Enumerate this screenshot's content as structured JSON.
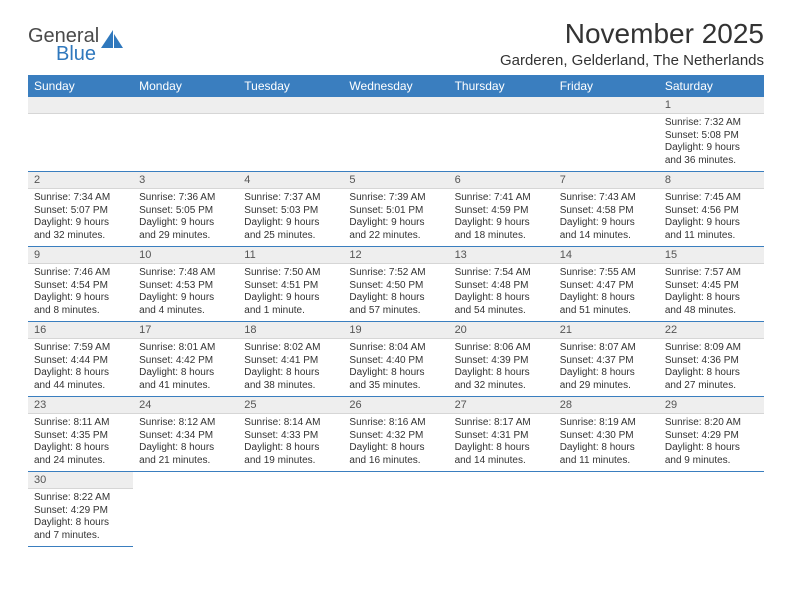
{
  "brand": {
    "word1": "General",
    "word2": "Blue"
  },
  "title": "November 2025",
  "location": "Garderen, Gelderland, The Netherlands",
  "colors": {
    "header_bg": "#3a7ebf",
    "header_text": "#ffffff",
    "row_divider": "#3a7ebf",
    "daynum_bg": "#eeeeee",
    "brand_blue": "#2f78bd"
  },
  "weekdays": [
    "Sunday",
    "Monday",
    "Tuesday",
    "Wednesday",
    "Thursday",
    "Friday",
    "Saturday"
  ],
  "weeks": [
    [
      null,
      null,
      null,
      null,
      null,
      null,
      {
        "n": "1",
        "sunrise": "Sunrise: 7:32 AM",
        "sunset": "Sunset: 5:08 PM",
        "daylight": "Daylight: 9 hours and 36 minutes."
      }
    ],
    [
      {
        "n": "2",
        "sunrise": "Sunrise: 7:34 AM",
        "sunset": "Sunset: 5:07 PM",
        "daylight": "Daylight: 9 hours and 32 minutes."
      },
      {
        "n": "3",
        "sunrise": "Sunrise: 7:36 AM",
        "sunset": "Sunset: 5:05 PM",
        "daylight": "Daylight: 9 hours and 29 minutes."
      },
      {
        "n": "4",
        "sunrise": "Sunrise: 7:37 AM",
        "sunset": "Sunset: 5:03 PM",
        "daylight": "Daylight: 9 hours and 25 minutes."
      },
      {
        "n": "5",
        "sunrise": "Sunrise: 7:39 AM",
        "sunset": "Sunset: 5:01 PM",
        "daylight": "Daylight: 9 hours and 22 minutes."
      },
      {
        "n": "6",
        "sunrise": "Sunrise: 7:41 AM",
        "sunset": "Sunset: 4:59 PM",
        "daylight": "Daylight: 9 hours and 18 minutes."
      },
      {
        "n": "7",
        "sunrise": "Sunrise: 7:43 AM",
        "sunset": "Sunset: 4:58 PM",
        "daylight": "Daylight: 9 hours and 14 minutes."
      },
      {
        "n": "8",
        "sunrise": "Sunrise: 7:45 AM",
        "sunset": "Sunset: 4:56 PM",
        "daylight": "Daylight: 9 hours and 11 minutes."
      }
    ],
    [
      {
        "n": "9",
        "sunrise": "Sunrise: 7:46 AM",
        "sunset": "Sunset: 4:54 PM",
        "daylight": "Daylight: 9 hours and 8 minutes."
      },
      {
        "n": "10",
        "sunrise": "Sunrise: 7:48 AM",
        "sunset": "Sunset: 4:53 PM",
        "daylight": "Daylight: 9 hours and 4 minutes."
      },
      {
        "n": "11",
        "sunrise": "Sunrise: 7:50 AM",
        "sunset": "Sunset: 4:51 PM",
        "daylight": "Daylight: 9 hours and 1 minute."
      },
      {
        "n": "12",
        "sunrise": "Sunrise: 7:52 AM",
        "sunset": "Sunset: 4:50 PM",
        "daylight": "Daylight: 8 hours and 57 minutes."
      },
      {
        "n": "13",
        "sunrise": "Sunrise: 7:54 AM",
        "sunset": "Sunset: 4:48 PM",
        "daylight": "Daylight: 8 hours and 54 minutes."
      },
      {
        "n": "14",
        "sunrise": "Sunrise: 7:55 AM",
        "sunset": "Sunset: 4:47 PM",
        "daylight": "Daylight: 8 hours and 51 minutes."
      },
      {
        "n": "15",
        "sunrise": "Sunrise: 7:57 AM",
        "sunset": "Sunset: 4:45 PM",
        "daylight": "Daylight: 8 hours and 48 minutes."
      }
    ],
    [
      {
        "n": "16",
        "sunrise": "Sunrise: 7:59 AM",
        "sunset": "Sunset: 4:44 PM",
        "daylight": "Daylight: 8 hours and 44 minutes."
      },
      {
        "n": "17",
        "sunrise": "Sunrise: 8:01 AM",
        "sunset": "Sunset: 4:42 PM",
        "daylight": "Daylight: 8 hours and 41 minutes."
      },
      {
        "n": "18",
        "sunrise": "Sunrise: 8:02 AM",
        "sunset": "Sunset: 4:41 PM",
        "daylight": "Daylight: 8 hours and 38 minutes."
      },
      {
        "n": "19",
        "sunrise": "Sunrise: 8:04 AM",
        "sunset": "Sunset: 4:40 PM",
        "daylight": "Daylight: 8 hours and 35 minutes."
      },
      {
        "n": "20",
        "sunrise": "Sunrise: 8:06 AM",
        "sunset": "Sunset: 4:39 PM",
        "daylight": "Daylight: 8 hours and 32 minutes."
      },
      {
        "n": "21",
        "sunrise": "Sunrise: 8:07 AM",
        "sunset": "Sunset: 4:37 PM",
        "daylight": "Daylight: 8 hours and 29 minutes."
      },
      {
        "n": "22",
        "sunrise": "Sunrise: 8:09 AM",
        "sunset": "Sunset: 4:36 PM",
        "daylight": "Daylight: 8 hours and 27 minutes."
      }
    ],
    [
      {
        "n": "23",
        "sunrise": "Sunrise: 8:11 AM",
        "sunset": "Sunset: 4:35 PM",
        "daylight": "Daylight: 8 hours and 24 minutes."
      },
      {
        "n": "24",
        "sunrise": "Sunrise: 8:12 AM",
        "sunset": "Sunset: 4:34 PM",
        "daylight": "Daylight: 8 hours and 21 minutes."
      },
      {
        "n": "25",
        "sunrise": "Sunrise: 8:14 AM",
        "sunset": "Sunset: 4:33 PM",
        "daylight": "Daylight: 8 hours and 19 minutes."
      },
      {
        "n": "26",
        "sunrise": "Sunrise: 8:16 AM",
        "sunset": "Sunset: 4:32 PM",
        "daylight": "Daylight: 8 hours and 16 minutes."
      },
      {
        "n": "27",
        "sunrise": "Sunrise: 8:17 AM",
        "sunset": "Sunset: 4:31 PM",
        "daylight": "Daylight: 8 hours and 14 minutes."
      },
      {
        "n": "28",
        "sunrise": "Sunrise: 8:19 AM",
        "sunset": "Sunset: 4:30 PM",
        "daylight": "Daylight: 8 hours and 11 minutes."
      },
      {
        "n": "29",
        "sunrise": "Sunrise: 8:20 AM",
        "sunset": "Sunset: 4:29 PM",
        "daylight": "Daylight: 8 hours and 9 minutes."
      }
    ],
    [
      {
        "n": "30",
        "sunrise": "Sunrise: 8:22 AM",
        "sunset": "Sunset: 4:29 PM",
        "daylight": "Daylight: 8 hours and 7 minutes."
      },
      null,
      null,
      null,
      null,
      null,
      null
    ]
  ]
}
